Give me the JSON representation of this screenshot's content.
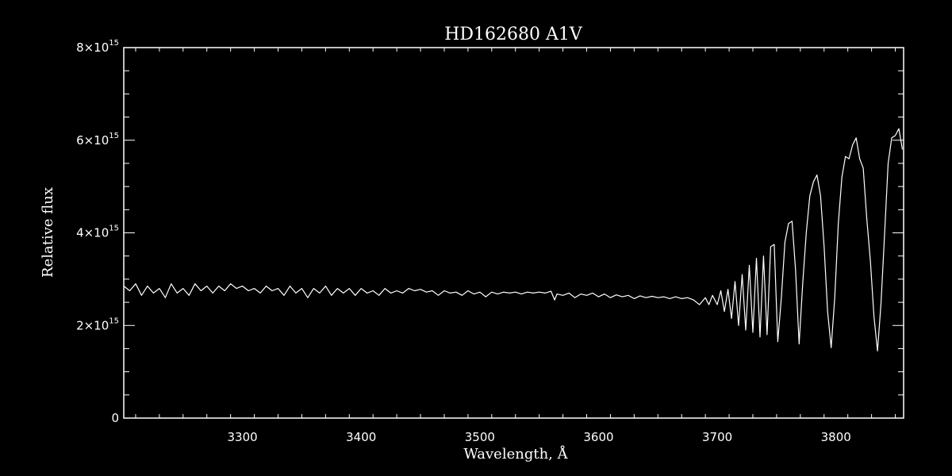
{
  "chart_data": {
    "type": "line",
    "title": "HD162680  A1V",
    "xlabel": "Wavelength, Å",
    "ylabel": "Relative flux",
    "xlim": [
      3200,
      3857
    ],
    "ylim": [
      0,
      8000000000000000.0
    ],
    "x_major_ticks": [
      3300,
      3400,
      3500,
      3600,
      3700,
      3800
    ],
    "x_tick_labels": [
      "3300",
      "3400",
      "3500",
      "3600",
      "3700",
      "3800"
    ],
    "y_tick_labels": [
      {
        "value": 0,
        "mantissa": "0",
        "exponent": ""
      },
      {
        "value": 2000000000000000.0,
        "mantissa": "2×10",
        "exponent": "15"
      },
      {
        "value": 4000000000000000.0,
        "mantissa": "4×10",
        "exponent": "15"
      },
      {
        "value": 6000000000000000.0,
        "mantissa": "6×10",
        "exponent": "15"
      },
      {
        "value": 8000000000000000.0,
        "mantissa": "8×10",
        "exponent": "15"
      }
    ],
    "grid": false,
    "line_color": "#ffffff",
    "background": "#000000",
    "series": [
      {
        "x": [
          3200,
          3205,
          3210,
          3215,
          3220,
          3225,
          3230,
          3235,
          3240,
          3245,
          3250,
          3255,
          3260,
          3265,
          3270,
          3275,
          3280,
          3285,
          3290,
          3295,
          3300,
          3305,
          3310,
          3315,
          3320,
          3325,
          3330,
          3335,
          3340,
          3345,
          3350,
          3355,
          3360,
          3365,
          3370,
          3375,
          3380,
          3385,
          3390,
          3395,
          3400,
          3405,
          3410,
          3415,
          3420,
          3425,
          3430,
          3435,
          3440,
          3445,
          3450,
          3455,
          3460,
          3465,
          3470,
          3475,
          3480,
          3485,
          3490,
          3495,
          3500,
          3505,
          3510,
          3515,
          3520,
          3525,
          3530,
          3535,
          3540,
          3545,
          3550,
          3555,
          3560,
          3563,
          3565,
          3570,
          3575,
          3580,
          3585,
          3590,
          3595,
          3600,
          3605,
          3610,
          3615,
          3620,
          3625,
          3630,
          3635,
          3640,
          3645,
          3650,
          3655,
          3660,
          3665,
          3670,
          3675,
          3680,
          3685,
          3690,
          3693,
          3696,
          3700,
          3703,
          3706,
          3709,
          3712,
          3715,
          3718,
          3721,
          3724,
          3727,
          3730,
          3733,
          3736,
          3739,
          3742,
          3745,
          3748,
          3751,
          3754,
          3757,
          3760,
          3763,
          3766,
          3769,
          3772,
          3775,
          3778,
          3781,
          3784,
          3787,
          3790,
          3793,
          3796,
          3799,
          3802,
          3805,
          3808,
          3811,
          3814,
          3817,
          3820,
          3823,
          3826,
          3829,
          3832,
          3835,
          3838,
          3841,
          3844,
          3847,
          3850,
          3853,
          3856
        ],
        "y": [
          2850000000000000.0,
          2750000000000000.0,
          2900000000000000.0,
          2650000000000000.0,
          2850000000000000.0,
          2700000000000000.0,
          2800000000000000.0,
          2600000000000000.0,
          2900000000000000.0,
          2700000000000000.0,
          2800000000000000.0,
          2650000000000000.0,
          2900000000000000.0,
          2750000000000000.0,
          2850000000000000.0,
          2700000000000000.0,
          2850000000000000.0,
          2750000000000000.0,
          2900000000000000.0,
          2800000000000000.0,
          2850000000000000.0,
          2750000000000000.0,
          2800000000000000.0,
          2700000000000000.0,
          2850000000000000.0,
          2750000000000000.0,
          2800000000000000.0,
          2650000000000000.0,
          2850000000000000.0,
          2700000000000000.0,
          2800000000000000.0,
          2600000000000000.0,
          2800000000000000.0,
          2700000000000000.0,
          2850000000000000.0,
          2650000000000000.0,
          2800000000000000.0,
          2700000000000000.0,
          2800000000000000.0,
          2650000000000000.0,
          2800000000000000.0,
          2700000000000000.0,
          2750000000000000.0,
          2650000000000000.0,
          2800000000000000.0,
          2700000000000000.0,
          2750000000000000.0,
          2700000000000000.0,
          2800000000000000.0,
          2750000000000000.0,
          2780000000000000.0,
          2720000000000000.0,
          2750000000000000.0,
          2650000000000000.0,
          2750000000000000.0,
          2700000000000000.0,
          2720000000000000.0,
          2650000000000000.0,
          2750000000000000.0,
          2680000000000000.0,
          2720000000000000.0,
          2620000000000000.0,
          2720000000000000.0,
          2680000000000000.0,
          2720000000000000.0,
          2700000000000000.0,
          2720000000000000.0,
          2680000000000000.0,
          2720000000000000.0,
          2700000000000000.0,
          2720000000000000.0,
          2700000000000000.0,
          2740000000000000.0,
          2550000000000000.0,
          2680000000000000.0,
          2650000000000000.0,
          2700000000000000.0,
          2600000000000000.0,
          2680000000000000.0,
          2650000000000000.0,
          2700000000000000.0,
          2620000000000000.0,
          2680000000000000.0,
          2600000000000000.0,
          2660000000000000.0,
          2620000000000000.0,
          2650000000000000.0,
          2580000000000000.0,
          2640000000000000.0,
          2600000000000000.0,
          2630000000000000.0,
          2600000000000000.0,
          2620000000000000.0,
          2580000000000000.0,
          2620000000000000.0,
          2580000000000000.0,
          2600000000000000.0,
          2550000000000000.0,
          2450000000000000.0,
          2600000000000000.0,
          2450000000000000.0,
          2650000000000000.0,
          2450000000000000.0,
          2750000000000000.0,
          2300000000000000.0,
          2780000000000000.0,
          2150000000000000.0,
          2950000000000000.0,
          2000000000000000.0,
          3100000000000000.0,
          1900000000000000.0,
          3300000000000000.0,
          1850000000000000.0,
          3450000000000000.0,
          1750000000000000.0,
          3500000000000000.0,
          1800000000000000.0,
          3700000000000000.0,
          3750000000000000.0,
          1650000000000000.0,
          2600000000000000.0,
          3800000000000000.0,
          4200000000000000.0,
          4250000000000000.0,
          3200000000000000.0,
          1600000000000000.0,
          2900000000000000.0,
          4000000000000000.0,
          4800000000000000.0,
          5100000000000000.0,
          5250000000000000.0,
          4800000000000000.0,
          3700000000000000.0,
          2300000000000000.0,
          1520000000000000.0,
          2600000000000000.0,
          4200000000000000.0,
          5200000000000000.0,
          5650000000000000.0,
          5600000000000000.0,
          5900000000000000.0,
          6050000000000000.0,
          5600000000000000.0,
          5400000000000000.0,
          4300000000000000.0,
          3400000000000000.0,
          2200000000000000.0,
          1450000000000000.0,
          2500000000000000.0,
          4000000000000000.0,
          5500000000000000.0,
          6050000000000000.0,
          6100000000000000.0,
          6250000000000000.0,
          5800000000000000.0
        ]
      }
    ]
  }
}
